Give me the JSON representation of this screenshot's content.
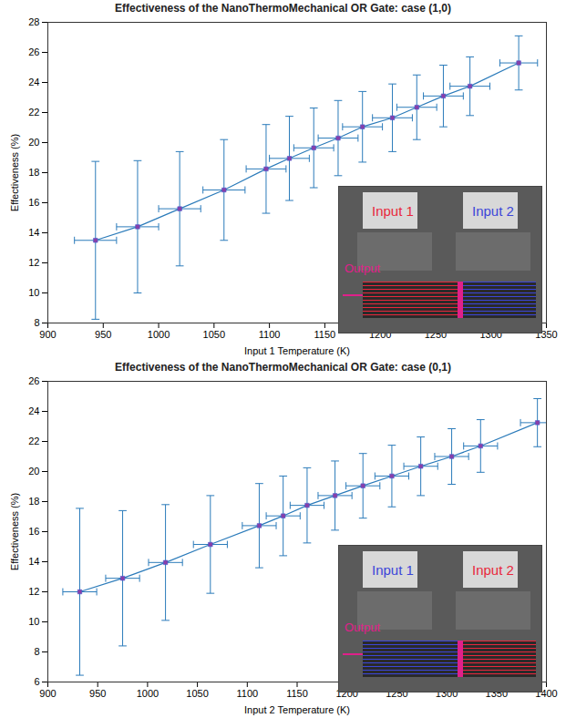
{
  "chart_data": [
    {
      "type": "line",
      "title": "Effectiveness of the NanoThermoMechanical OR Gate: case (1,0)",
      "x_label": "Input 1 Temperature (K)",
      "y_label": "Effectiveness (%)",
      "x": [
        943,
        981,
        1019,
        1059,
        1097,
        1118,
        1140,
        1162,
        1184,
        1211,
        1233,
        1257,
        1281,
        1325
      ],
      "values": [
        13.5,
        14.4,
        15.6,
        16.85,
        18.25,
        18.95,
        19.65,
        20.3,
        21.05,
        21.65,
        22.35,
        23.1,
        23.75,
        25.3
      ],
      "y_error": [
        5.25,
        4.4,
        3.8,
        3.35,
        2.95,
        2.8,
        2.65,
        2.5,
        2.35,
        2.25,
        2.15,
        2.05,
        1.95,
        1.8
      ],
      "x_error": [
        19,
        19,
        19,
        19,
        18,
        18,
        18,
        18,
        18,
        18,
        18,
        18,
        18,
        17
      ],
      "xlim": [
        900,
        1350
      ],
      "ylim": [
        8,
        28
      ],
      "xticks": [
        900,
        950,
        1000,
        1050,
        1100,
        1150,
        1200,
        1250,
        1300,
        1350
      ],
      "yticks": [
        8,
        10,
        12,
        14,
        16,
        18,
        20,
        22,
        24,
        26,
        28
      ],
      "color": "#2b7bba",
      "marker": "square",
      "grid": false,
      "annotations": [
        {
          "text": "Input 1",
          "color": "#e8283c"
        },
        {
          "text": "Input 2",
          "color": "#3c46d8"
        },
        {
          "text": "Output",
          "color": "#e0208a"
        }
      ]
    },
    {
      "type": "line",
      "title": "Effectiveness of the NanoThermoMechanical OR Gate: case (0,1)",
      "x_label": "Input 2 Temperature (K)",
      "y_label": "Effectiveness (%)",
      "x": [
        932,
        975,
        1018,
        1063,
        1112,
        1136,
        1160,
        1188,
        1216,
        1245,
        1274,
        1305,
        1334,
        1391
      ],
      "values": [
        12.0,
        12.9,
        13.95,
        15.15,
        16.4,
        17.05,
        17.75,
        18.4,
        19.05,
        19.7,
        20.35,
        21.0,
        21.7,
        23.25
      ],
      "y_error": [
        5.55,
        4.5,
        3.85,
        3.25,
        2.8,
        2.65,
        2.5,
        2.3,
        2.15,
        2.05,
        1.95,
        1.85,
        1.75,
        1.6
      ],
      "x_error": [
        17,
        17,
        17,
        17,
        17,
        17,
        17,
        17,
        17,
        17,
        17,
        17,
        17,
        17
      ],
      "xlim": [
        900,
        1400
      ],
      "ylim": [
        6,
        26
      ],
      "xticks": [
        900,
        950,
        1000,
        1050,
        1100,
        1150,
        1200,
        1250,
        1300,
        1350,
        1400
      ],
      "yticks": [
        6,
        8,
        10,
        12,
        14,
        16,
        18,
        20,
        22,
        24,
        26
      ],
      "color": "#2b7bba",
      "marker": "square",
      "grid": false,
      "annotations": [
        {
          "text": "Input 1",
          "color": "#3c46d8"
        },
        {
          "text": "Input 2",
          "color": "#e8283c"
        },
        {
          "text": "Output",
          "color": "#e0208a"
        }
      ]
    }
  ]
}
